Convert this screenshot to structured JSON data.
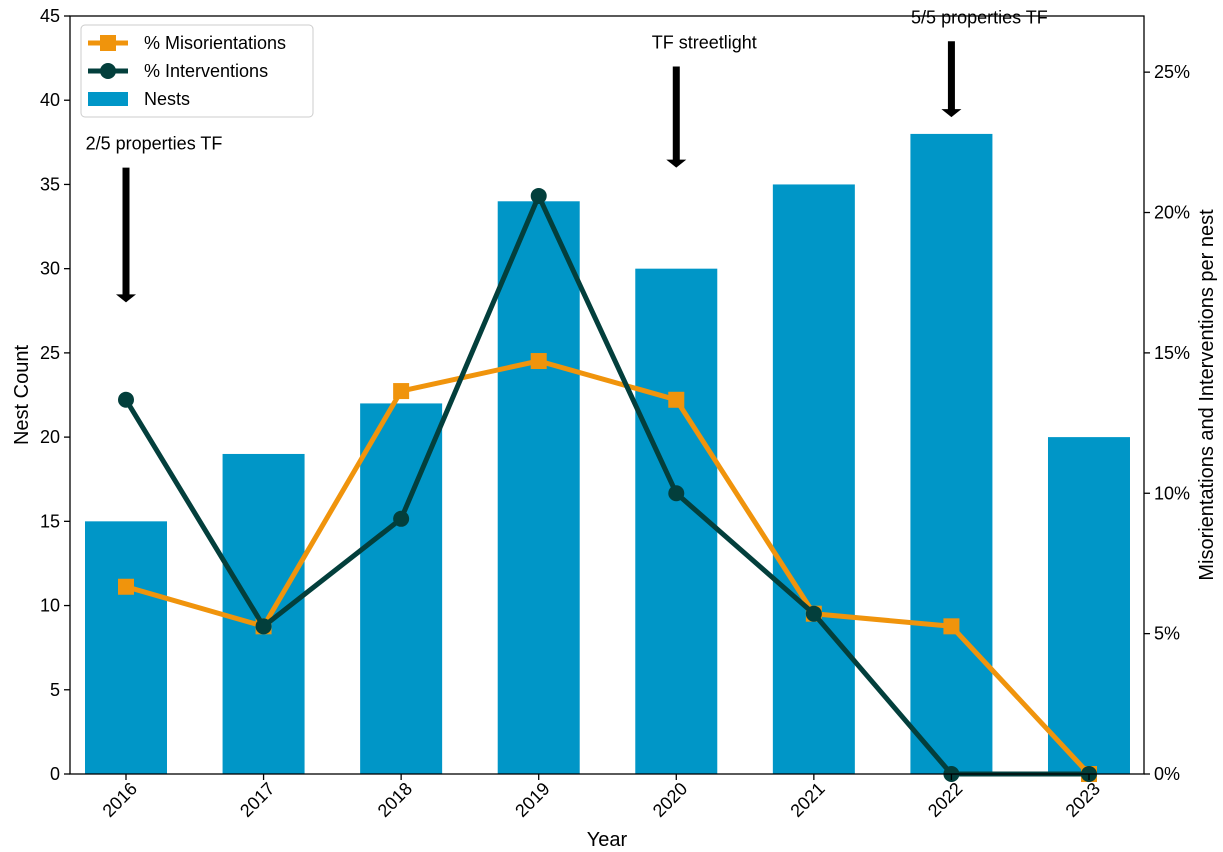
{
  "chart_data": {
    "type": "bar",
    "categories": [
      "2016",
      "2017",
      "2018",
      "2019",
      "2020",
      "2021",
      "2022",
      "2023"
    ],
    "bars": {
      "name": "Nests",
      "color": "#0096c7",
      "values": [
        15,
        19,
        22,
        34,
        30,
        35,
        38,
        20
      ]
    },
    "series": [
      {
        "name": "% Misorientations",
        "color": "#f0940c",
        "marker": "square",
        "axis": "right",
        "values": [
          6.67,
          5.26,
          13.64,
          14.71,
          13.33,
          5.71,
          5.26,
          0
        ]
      },
      {
        "name": "% Interventions",
        "color": "#033f3c",
        "marker": "circle",
        "axis": "right",
        "values": [
          13.33,
          5.26,
          9.09,
          20.59,
          10.0,
          5.71,
          0,
          0
        ]
      }
    ],
    "xlabel": "Year",
    "ylabel": "Nest Count",
    "y2label": "Misorientations and Interventions per nest",
    "ylim": [
      0,
      45
    ],
    "yticks": [
      "0",
      "5",
      "10",
      "15",
      "20",
      "25",
      "30",
      "35",
      "40",
      "45"
    ],
    "y2lim": [
      0,
      27
    ],
    "y2ticks": [
      "0%",
      "5%",
      "10%",
      "15%",
      "20%",
      "25%"
    ],
    "grid": false,
    "legend_position": "top-left",
    "annotations": [
      {
        "text": "2/5 properties TF",
        "category": "2016",
        "arrow_from": 36,
        "arrow_to": 28
      },
      {
        "text": "TF streetlight",
        "category": "2020",
        "arrow_from": 42,
        "arrow_to": 36
      },
      {
        "text": "5/5 properties TF",
        "category": "2022",
        "arrow_from": 43.5,
        "arrow_to": 39
      }
    ]
  }
}
